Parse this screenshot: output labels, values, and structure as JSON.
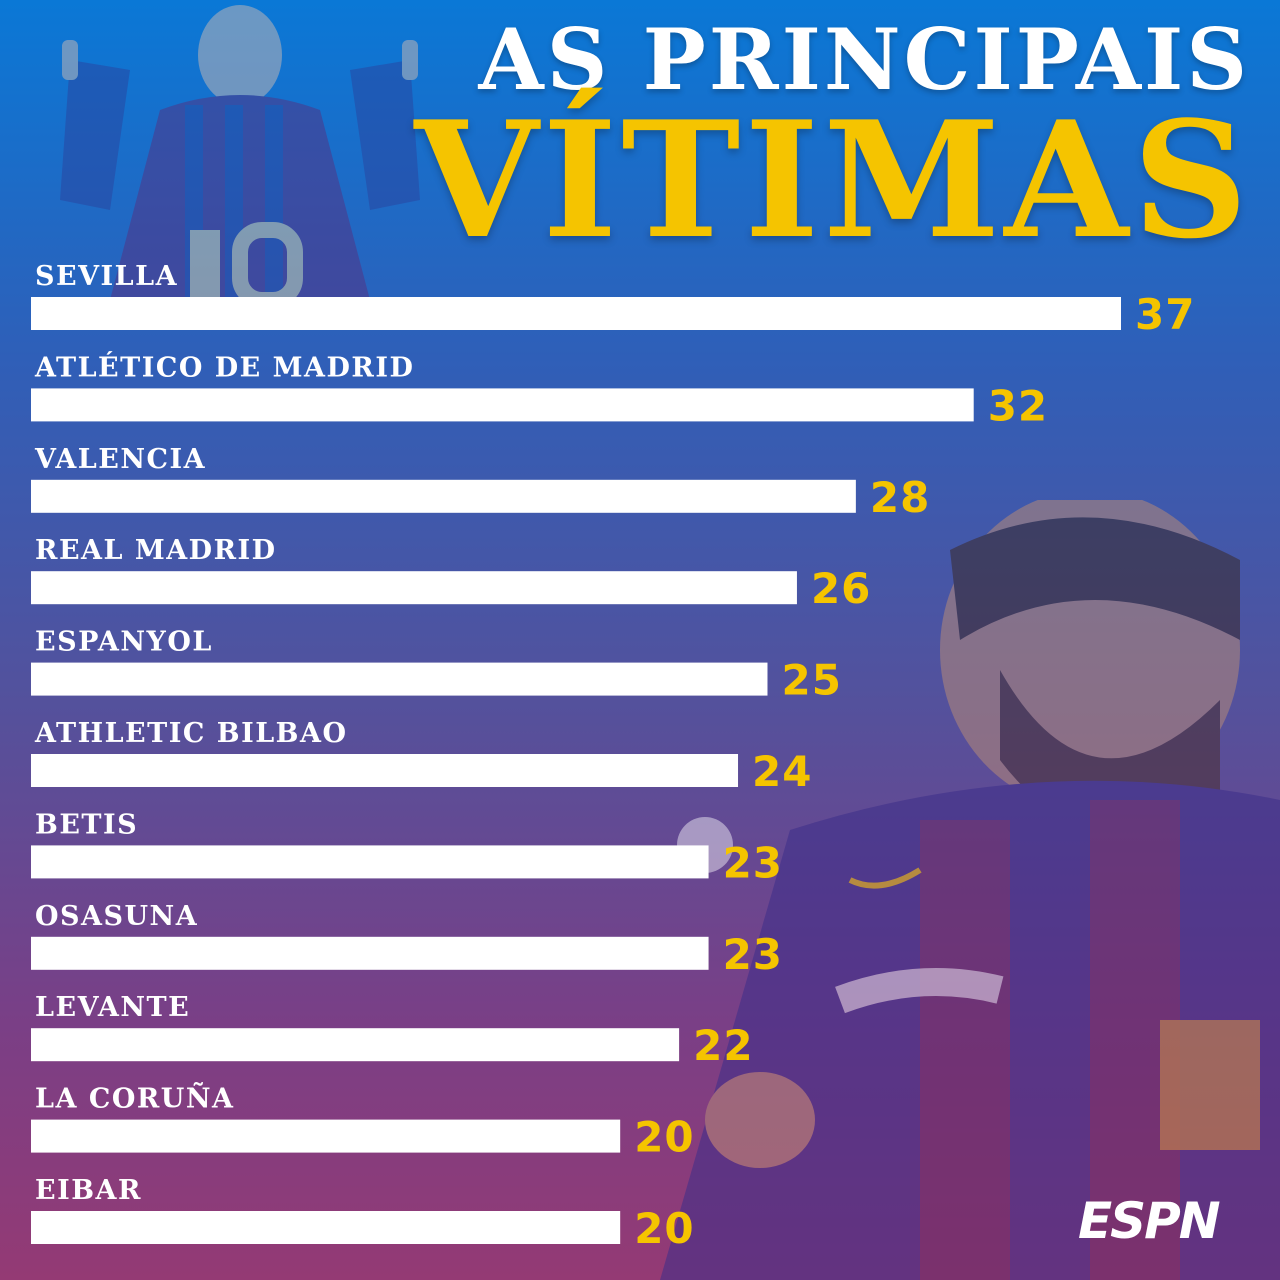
{
  "title": {
    "line1": "AS PRINCIPAIS",
    "line2": "VÍTIMAS"
  },
  "brand": "ESPN",
  "colors": {
    "bar": "#ffffff",
    "value": "#f5c400",
    "label": "#ffffff"
  },
  "chart_data": {
    "type": "bar",
    "orientation": "horizontal",
    "title": "AS PRINCIPAIS VÍTIMAS",
    "categories": [
      "SEVILLA",
      "ATLÉTICO DE MADRID",
      "VALENCIA",
      "REAL MADRID",
      "ESPANYOL",
      "ATHLETIC BILBAO",
      "BETIS",
      "OSASUNA",
      "LEVANTE",
      "LA CORUÑA",
      "EIBAR"
    ],
    "values": [
      37,
      32,
      28,
      26,
      25,
      24,
      23,
      23,
      22,
      20,
      20
    ],
    "xlim": [
      0,
      37
    ],
    "grid": false,
    "legend": "none"
  }
}
